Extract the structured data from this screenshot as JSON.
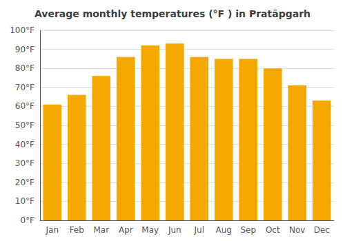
{
  "chart_data": {
    "type": "bar",
    "title": "Average monthly temperatures (°F ) in Pratāpgarh",
    "categories": [
      "Jan",
      "Feb",
      "Mar",
      "Apr",
      "May",
      "Jun",
      "Jul",
      "Aug",
      "Sep",
      "Oct",
      "Nov",
      "Dec"
    ],
    "values": [
      61,
      66,
      76,
      86,
      92,
      93,
      86,
      85,
      85,
      80,
      71,
      63
    ],
    "color": "#F5A800",
    "ylim": [
      0,
      100
    ],
    "yticks": [
      {
        "value": 0,
        "label": "0°F"
      },
      {
        "value": 10,
        "label": "10°F"
      },
      {
        "value": 20,
        "label": "20°F"
      },
      {
        "value": 30,
        "label": "30°F"
      },
      {
        "value": 40,
        "label": "40°F"
      },
      {
        "value": 50,
        "label": "50°F"
      },
      {
        "value": 60,
        "label": "60°F"
      },
      {
        "value": 70,
        "label": "70°F"
      },
      {
        "value": 80,
        "label": "80°F"
      },
      {
        "value": 90,
        "label": "90°F"
      },
      {
        "value": 100,
        "label": "100°F"
      }
    ],
    "grid": true
  }
}
